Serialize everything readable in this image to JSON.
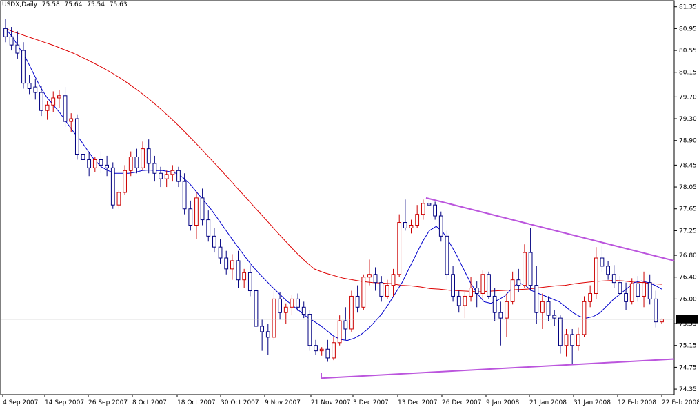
{
  "header": {
    "symbol_period": "USDX,Daily",
    "open": "75.58",
    "high": "75.64",
    "low": "75.54",
    "close": "75.63"
  },
  "chart_data": {
    "type": "candlestick",
    "instrument": "USDX",
    "period": "Daily",
    "price_axis": {
      "ylim": [
        74.25,
        81.46
      ],
      "ticks": [
        "81.35",
        "80.95",
        "80.55",
        "80.15",
        "79.70",
        "79.30",
        "78.90",
        "78.45",
        "78.05",
        "77.65",
        "77.25",
        "76.80",
        "76.40",
        "76.00",
        "75.55",
        "75.15",
        "74.75",
        "74.35"
      ]
    },
    "date_axis": {
      "labels": [
        "4 Sep 2007",
        "14 Sep 2007",
        "26 Sep 2007",
        "8 Oct 2007",
        "18 Oct 2007",
        "30 Oct 2007",
        "9 Nov 2007",
        "21 Nov 2007",
        "3 Dec 2007",
        "13 Dec 2007",
        "26 Dec 2007",
        "9 Jan 2008",
        "21 Jan 2008",
        "31 Jan 2008",
        "12 Feb 2008",
        "22 Feb 2008"
      ]
    },
    "current_price": "75.63",
    "colors": {
      "bull": "#cc0000",
      "bear": "#000080",
      "fast_ma": "#0000cc",
      "slow_ma": "#dd0000",
      "trendline": "#bb55dd",
      "price_line": "#c0c0c0",
      "price_tag_bg": "#000000",
      "price_tag_text": "#ffffff"
    },
    "grid": false,
    "candles": [
      {
        "o": 80.95,
        "h": 81.12,
        "l": 80.7,
        "c": 80.8
      },
      {
        "o": 80.8,
        "h": 80.98,
        "l": 80.55,
        "c": 80.65
      },
      {
        "o": 80.65,
        "h": 80.9,
        "l": 80.4,
        "c": 80.5
      },
      {
        "o": 80.55,
        "h": 80.7,
        "l": 79.85,
        "c": 79.95
      },
      {
        "o": 79.95,
        "h": 80.1,
        "l": 79.75,
        "c": 79.85
      },
      {
        "o": 79.88,
        "h": 80.02,
        "l": 79.65,
        "c": 79.78
      },
      {
        "o": 79.78,
        "h": 79.9,
        "l": 79.35,
        "c": 79.45
      },
      {
        "o": 79.45,
        "h": 79.62,
        "l": 79.28,
        "c": 79.55
      },
      {
        "o": 79.55,
        "h": 79.8,
        "l": 79.42,
        "c": 79.68
      },
      {
        "o": 79.68,
        "h": 79.82,
        "l": 79.5,
        "c": 79.72
      },
      {
        "o": 79.72,
        "h": 79.88,
        "l": 79.15,
        "c": 79.25
      },
      {
        "o": 79.25,
        "h": 79.4,
        "l": 79.05,
        "c": 79.3
      },
      {
        "o": 79.3,
        "h": 79.38,
        "l": 78.55,
        "c": 78.65
      },
      {
        "o": 78.65,
        "h": 78.82,
        "l": 78.45,
        "c": 78.55
      },
      {
        "o": 78.55,
        "h": 78.68,
        "l": 78.25,
        "c": 78.4
      },
      {
        "o": 78.4,
        "h": 78.6,
        "l": 78.32,
        "c": 78.55
      },
      {
        "o": 78.55,
        "h": 78.7,
        "l": 78.3,
        "c": 78.45
      },
      {
        "o": 78.45,
        "h": 78.62,
        "l": 78.25,
        "c": 78.4
      },
      {
        "o": 78.4,
        "h": 78.5,
        "l": 77.65,
        "c": 77.72
      },
      {
        "o": 77.72,
        "h": 78.0,
        "l": 77.65,
        "c": 77.95
      },
      {
        "o": 77.95,
        "h": 78.45,
        "l": 77.9,
        "c": 78.35
      },
      {
        "o": 78.35,
        "h": 78.7,
        "l": 78.25,
        "c": 78.6
      },
      {
        "o": 78.6,
        "h": 78.75,
        "l": 78.3,
        "c": 78.4
      },
      {
        "o": 78.4,
        "h": 78.88,
        "l": 78.35,
        "c": 78.75
      },
      {
        "o": 78.75,
        "h": 78.92,
        "l": 78.3,
        "c": 78.48
      },
      {
        "o": 78.48,
        "h": 78.62,
        "l": 78.15,
        "c": 78.3
      },
      {
        "o": 78.3,
        "h": 78.42,
        "l": 78.05,
        "c": 78.2
      },
      {
        "o": 78.2,
        "h": 78.35,
        "l": 78.05,
        "c": 78.28
      },
      {
        "o": 78.28,
        "h": 78.45,
        "l": 78.15,
        "c": 78.35
      },
      {
        "o": 78.35,
        "h": 78.42,
        "l": 78.05,
        "c": 78.15
      },
      {
        "o": 78.15,
        "h": 78.3,
        "l": 77.55,
        "c": 77.65
      },
      {
        "o": 77.65,
        "h": 77.8,
        "l": 77.25,
        "c": 77.35
      },
      {
        "o": 77.35,
        "h": 77.95,
        "l": 77.1,
        "c": 77.85
      },
      {
        "o": 77.85,
        "h": 78.02,
        "l": 77.35,
        "c": 77.45
      },
      {
        "o": 77.45,
        "h": 77.62,
        "l": 77.05,
        "c": 77.15
      },
      {
        "o": 77.15,
        "h": 77.3,
        "l": 76.85,
        "c": 76.95
      },
      {
        "o": 76.95,
        "h": 77.1,
        "l": 76.65,
        "c": 76.75
      },
      {
        "o": 76.75,
        "h": 76.88,
        "l": 76.45,
        "c": 76.55
      },
      {
        "o": 76.55,
        "h": 76.82,
        "l": 76.35,
        "c": 76.7
      },
      {
        "o": 76.7,
        "h": 76.88,
        "l": 76.2,
        "c": 76.35
      },
      {
        "o": 76.35,
        "h": 76.55,
        "l": 76.2,
        "c": 76.48
      },
      {
        "o": 76.48,
        "h": 76.62,
        "l": 76.05,
        "c": 76.15
      },
      {
        "o": 76.15,
        "h": 76.28,
        "l": 75.4,
        "c": 75.5
      },
      {
        "o": 75.5,
        "h": 75.62,
        "l": 75.05,
        "c": 75.4
      },
      {
        "o": 75.4,
        "h": 75.55,
        "l": 74.98,
        "c": 75.3
      },
      {
        "o": 75.3,
        "h": 76.15,
        "l": 75.25,
        "c": 76.0
      },
      {
        "o": 76.0,
        "h": 76.12,
        "l": 75.62,
        "c": 75.75
      },
      {
        "o": 75.75,
        "h": 75.92,
        "l": 75.55,
        "c": 75.85
      },
      {
        "o": 75.85,
        "h": 76.08,
        "l": 75.7,
        "c": 76.0
      },
      {
        "o": 76.0,
        "h": 76.1,
        "l": 75.78,
        "c": 75.85
      },
      {
        "o": 75.85,
        "h": 75.95,
        "l": 75.65,
        "c": 75.72
      },
      {
        "o": 75.72,
        "h": 75.8,
        "l": 75.05,
        "c": 75.15
      },
      {
        "o": 75.15,
        "h": 75.25,
        "l": 74.98,
        "c": 75.05
      },
      {
        "o": 75.05,
        "h": 75.12,
        "l": 74.96,
        "c": 75.08
      },
      {
        "o": 75.08,
        "h": 75.25,
        "l": 74.85,
        "c": 74.92
      },
      {
        "o": 74.92,
        "h": 75.3,
        "l": 74.88,
        "c": 75.2
      },
      {
        "o": 75.2,
        "h": 75.7,
        "l": 75.15,
        "c": 75.6
      },
      {
        "o": 75.6,
        "h": 75.85,
        "l": 75.25,
        "c": 75.45
      },
      {
        "o": 75.45,
        "h": 76.15,
        "l": 75.4,
        "c": 76.05
      },
      {
        "o": 76.05,
        "h": 76.25,
        "l": 75.75,
        "c": 75.85
      },
      {
        "o": 75.85,
        "h": 76.45,
        "l": 75.8,
        "c": 76.4
      },
      {
        "o": 76.4,
        "h": 76.72,
        "l": 76.25,
        "c": 76.45
      },
      {
        "o": 76.45,
        "h": 76.58,
        "l": 76.15,
        "c": 76.3
      },
      {
        "o": 76.3,
        "h": 76.42,
        "l": 75.95,
        "c": 76.05
      },
      {
        "o": 76.05,
        "h": 76.35,
        "l": 76.0,
        "c": 76.25
      },
      {
        "o": 76.25,
        "h": 76.55,
        "l": 76.05,
        "c": 76.45
      },
      {
        "o": 76.45,
        "h": 77.55,
        "l": 76.4,
        "c": 77.4
      },
      {
        "o": 77.4,
        "h": 77.82,
        "l": 77.25,
        "c": 77.3
      },
      {
        "o": 77.3,
        "h": 77.45,
        "l": 77.2,
        "c": 77.35
      },
      {
        "o": 77.35,
        "h": 77.72,
        "l": 77.3,
        "c": 77.55
      },
      {
        "o": 77.55,
        "h": 77.82,
        "l": 77.45,
        "c": 77.75
      },
      {
        "o": 77.75,
        "h": 77.85,
        "l": 77.7,
        "c": 77.72
      },
      {
        "o": 77.72,
        "h": 77.78,
        "l": 77.45,
        "c": 77.52
      },
      {
        "o": 77.52,
        "h": 77.6,
        "l": 77.05,
        "c": 77.15
      },
      {
        "o": 77.15,
        "h": 77.25,
        "l": 76.35,
        "c": 76.45
      },
      {
        "o": 76.45,
        "h": 76.6,
        "l": 75.95,
        "c": 76.05
      },
      {
        "o": 76.05,
        "h": 76.15,
        "l": 75.75,
        "c": 75.88
      },
      {
        "o": 75.88,
        "h": 76.12,
        "l": 75.65,
        "c": 76.05
      },
      {
        "o": 76.05,
        "h": 76.4,
        "l": 75.95,
        "c": 76.2
      },
      {
        "o": 76.2,
        "h": 76.32,
        "l": 75.85,
        "c": 76.1
      },
      {
        "o": 76.1,
        "h": 76.52,
        "l": 76.0,
        "c": 76.45
      },
      {
        "o": 76.45,
        "h": 76.5,
        "l": 76.0,
        "c": 76.05
      },
      {
        "o": 76.05,
        "h": 76.2,
        "l": 75.6,
        "c": 75.75
      },
      {
        "o": 75.75,
        "h": 75.95,
        "l": 75.15,
        "c": 75.65
      },
      {
        "o": 75.65,
        "h": 76.1,
        "l": 75.3,
        "c": 75.95
      },
      {
        "o": 75.95,
        "h": 76.5,
        "l": 75.9,
        "c": 76.35
      },
      {
        "o": 76.35,
        "h": 76.55,
        "l": 76.12,
        "c": 76.25
      },
      {
        "o": 76.25,
        "h": 77.0,
        "l": 76.2,
        "c": 76.85
      },
      {
        "o": 76.85,
        "h": 77.3,
        "l": 76.15,
        "c": 76.25
      },
      {
        "o": 76.25,
        "h": 76.6,
        "l": 75.55,
        "c": 75.75
      },
      {
        "o": 75.75,
        "h": 76.1,
        "l": 75.45,
        "c": 75.95
      },
      {
        "o": 75.95,
        "h": 76.05,
        "l": 75.6,
        "c": 75.7
      },
      {
        "o": 75.7,
        "h": 75.8,
        "l": 75.5,
        "c": 75.65
      },
      {
        "o": 75.65,
        "h": 75.7,
        "l": 75.0,
        "c": 75.15
      },
      {
        "o": 75.15,
        "h": 75.45,
        "l": 74.95,
        "c": 75.35
      },
      {
        "o": 75.35,
        "h": 75.45,
        "l": 74.8,
        "c": 75.15
      },
      {
        "o": 75.15,
        "h": 75.48,
        "l": 75.05,
        "c": 75.35
      },
      {
        "o": 75.35,
        "h": 76.05,
        "l": 75.3,
        "c": 75.95
      },
      {
        "o": 75.95,
        "h": 76.25,
        "l": 75.85,
        "c": 76.1
      },
      {
        "o": 76.1,
        "h": 76.95,
        "l": 76.0,
        "c": 76.75
      },
      {
        "o": 76.75,
        "h": 76.98,
        "l": 76.5,
        "c": 76.6
      },
      {
        "o": 76.6,
        "h": 76.7,
        "l": 76.35,
        "c": 76.45
      },
      {
        "o": 76.45,
        "h": 76.62,
        "l": 76.2,
        "c": 76.3
      },
      {
        "o": 76.3,
        "h": 76.42,
        "l": 76.05,
        "c": 76.1
      },
      {
        "o": 76.1,
        "h": 76.3,
        "l": 75.8,
        "c": 75.95
      },
      {
        "o": 75.95,
        "h": 76.38,
        "l": 75.9,
        "c": 76.28
      },
      {
        "o": 76.28,
        "h": 76.42,
        "l": 75.95,
        "c": 76.05
      },
      {
        "o": 76.05,
        "h": 76.5,
        "l": 75.85,
        "c": 76.3
      },
      {
        "o": 76.3,
        "h": 76.45,
        "l": 75.9,
        "c": 76.0
      },
      {
        "o": 76.0,
        "h": 76.15,
        "l": 75.48,
        "c": 75.58
      },
      {
        "o": 75.58,
        "h": 75.64,
        "l": 75.54,
        "c": 75.63
      }
    ],
    "fast_ma": [
      80.95,
      80.8,
      80.6,
      80.4,
      80.15,
      79.9,
      79.7,
      79.55,
      79.4,
      79.22,
      79.05,
      78.9,
      78.72,
      78.55,
      78.42,
      78.35,
      78.3,
      78.3,
      78.3,
      78.32,
      78.35,
      78.36,
      78.35,
      78.35,
      78.33,
      78.3,
      78.22,
      78.1,
      77.95,
      77.8,
      77.65,
      77.48,
      77.3,
      77.12,
      76.95,
      76.78,
      76.62,
      76.48,
      76.35,
      76.22,
      76.1,
      75.98,
      75.88,
      75.78,
      75.68,
      75.6,
      75.52,
      75.42,
      75.32,
      75.26,
      75.24,
      75.28,
      75.35,
      75.45,
      75.58,
      75.72,
      75.9,
      76.1,
      76.3,
      76.55,
      76.8,
      77.05,
      77.25,
      77.33,
      77.22,
      77.02,
      76.8,
      76.55,
      76.3,
      76.1,
      75.95,
      75.92,
      75.98,
      76.05,
      76.18,
      76.3,
      76.25,
      76.15,
      76.1,
      76.05,
      76.0,
      75.95,
      75.85,
      75.75,
      75.68,
      75.65,
      75.68,
      75.75,
      75.88,
      76.0,
      76.1,
      76.2,
      76.3,
      76.33,
      76.3,
      76.25,
      76.18
    ],
    "slow_ma": [
      80.95,
      80.88,
      80.82,
      80.76,
      80.7,
      80.64,
      80.57,
      80.5,
      80.42,
      80.33,
      80.24,
      80.14,
      80.03,
      79.91,
      79.78,
      79.64,
      79.49,
      79.33,
      79.16,
      78.98,
      78.8,
      78.61,
      78.42,
      78.23,
      78.03,
      77.84,
      77.64,
      77.45,
      77.25,
      77.06,
      76.87,
      76.7,
      76.55,
      76.48,
      76.43,
      76.38,
      76.35,
      76.32,
      76.3,
      76.29,
      76.28,
      76.25,
      76.24,
      76.22,
      76.19,
      76.18,
      76.16,
      76.15,
      76.14,
      76.13,
      76.14,
      76.15,
      76.16,
      76.17,
      76.18,
      76.2,
      76.22,
      76.24,
      76.25,
      76.28,
      76.3,
      76.32,
      76.33,
      76.34,
      76.33,
      76.31,
      76.3,
      76.28,
      76.27
    ],
    "trendlines": [
      {
        "from": {
          "date": "13 Dec 2007",
          "price": 77.85
        },
        "to": {
          "date": "22 Feb 2008",
          "price": 76.7
        }
      },
      {
        "from": {
          "date": "21 Nov 2007",
          "price": 74.55
        },
        "to": {
          "date": "22 Feb 2008",
          "price": 74.9
        }
      }
    ]
  }
}
